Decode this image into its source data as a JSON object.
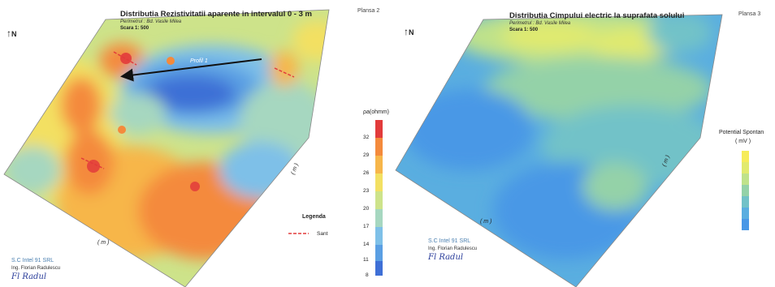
{
  "left_map": {
    "title": "Distributia Rezistivitatii aparente in intervalul 0 - 3 m",
    "perimeter": "Perimetrul :  Bd. Vasile Milea",
    "scale": "Scara 1: 500",
    "plate": "Plansa 2",
    "north": "N",
    "profile_label": "Profil 1",
    "legend_unit": "ρa(ohmm)",
    "legend_ticks": [
      "32",
      "29",
      "26",
      "23",
      "20",
      "17",
      "14",
      "11",
      "8"
    ],
    "legend_title": "Legenda",
    "legend_item": "Sant",
    "axis_unit_bottom": "( m )",
    "axis_unit_side": "( m )",
    "company": "S.C Intel 91 SRL",
    "engineer": "Ing. Florian Radulescu",
    "signature": "Fl Radul",
    "colors": [
      "#e23b3b",
      "#f48a3c",
      "#f7b64a",
      "#f3e062",
      "#cde38a",
      "#a6d7c0",
      "#7ec0e8",
      "#5a9fe3",
      "#3e6fd6"
    ]
  },
  "right_map": {
    "title": "Distributia Cimpului electric la suprafata solului",
    "perimeter": "Perimetrul :  Bd. Vasile Milea",
    "scale": "Scara 1: 500",
    "plate": "Plansa 3",
    "north": "N",
    "legend_title": "Potential Spontan",
    "legend_unit": "( mV )",
    "axis_unit_bottom": "( m )",
    "axis_unit_side": "( m )",
    "company": "S.C Intel 91 SRL",
    "engineer": "Ing. Florian Radulescu",
    "signature": "Fl Radul",
    "colors": [
      "#f6ec5a",
      "#e1ea6e",
      "#bfe28a",
      "#94d2a8",
      "#72c2c8",
      "#5aaee0",
      "#4a98e6"
    ]
  }
}
